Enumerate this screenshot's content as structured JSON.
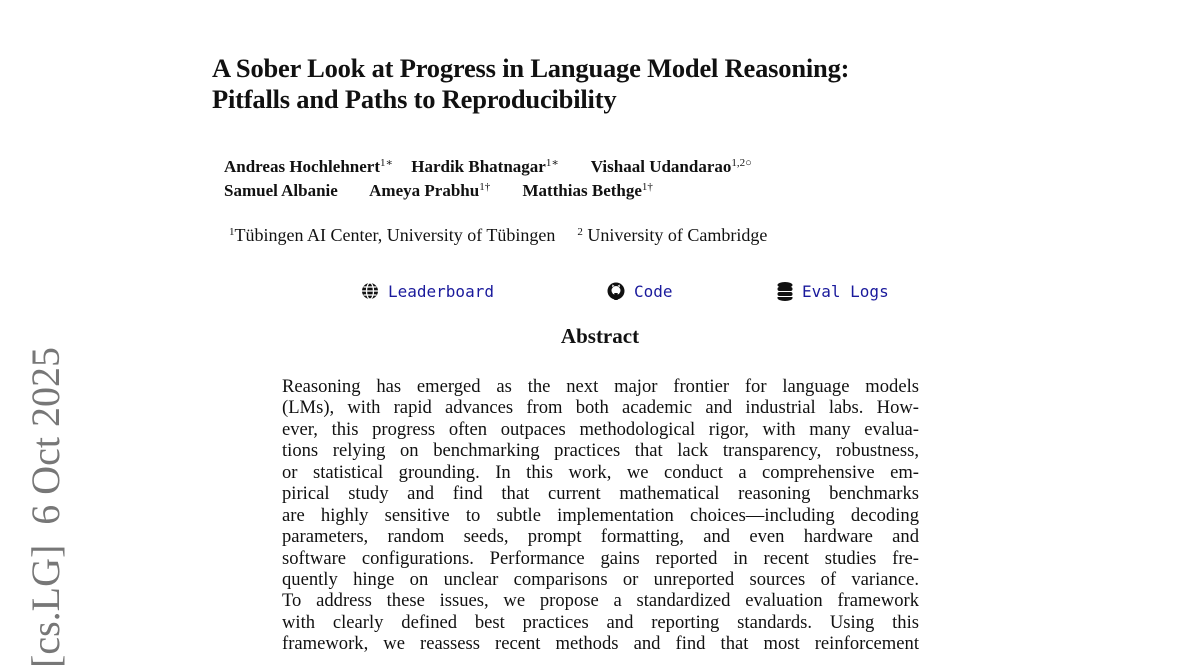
{
  "title": {
    "line1": "A Sober Look at Progress in Language Model Reasoning:",
    "line2": "Pitfalls and Paths to Reproducibility"
  },
  "authors": [
    {
      "name": "Andreas Hochlehnert",
      "sup": "1∗"
    },
    {
      "name": "Hardik Bhatnagar",
      "sup": "1∗"
    },
    {
      "name": "Vishaal Udandarao",
      "sup": "1,2○"
    },
    {
      "name": "Samuel Albanie",
      "sup": ""
    },
    {
      "name": "Ameya Prabhu",
      "sup": "1†"
    },
    {
      "name": "Matthias Bethge",
      "sup": "1†"
    }
  ],
  "affiliations": [
    {
      "sup": "1",
      "name": "Tübingen AI Center, University of Tübingen"
    },
    {
      "sup": "2",
      "name": " University of Cambridge"
    }
  ],
  "links": [
    {
      "label": "Leaderboard",
      "icon": "globe-icon"
    },
    {
      "label": "Code",
      "icon": "github-icon"
    },
    {
      "label": "Eval Logs",
      "icon": "database-icon"
    }
  ],
  "link_color": "#1a1a9c",
  "abstract": {
    "heading": "Abstract",
    "lines": [
      "Reasoning has emerged as the next major frontier for language models",
      "(LMs), with rapid advances from both academic and industrial labs. How-",
      "ever, this progress often outpaces methodological rigor, with many evalua-",
      "tions relying on benchmarking practices that lack transparency, robustness,",
      "or statistical grounding. In this work, we conduct a comprehensive em-",
      "pirical study and find that current mathematical reasoning benchmarks",
      "are highly sensitive to subtle implementation choices—including decoding",
      "parameters, random seeds, prompt formatting, and even hardware and",
      "software configurations. Performance gains reported in recent studies fre-",
      "quently hinge on unclear comparisons or unreported sources of variance.",
      "To address these issues, we propose a standardized evaluation framework",
      "with clearly defined best practices and reporting standards. Using this",
      "framework, we reassess recent methods and find that most reinforcement"
    ]
  },
  "arxiv_stamp": "[cs.LG]  6 Oct 2025"
}
